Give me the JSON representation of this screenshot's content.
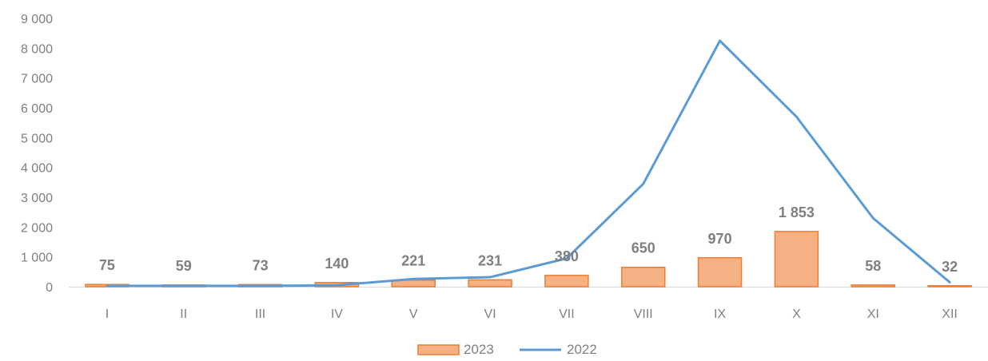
{
  "chart_data": {
    "type": "bar",
    "categories": [
      "I",
      "II",
      "III",
      "IV",
      "V",
      "VI",
      "VII",
      "VIII",
      "IX",
      "X",
      "XI",
      "XII"
    ],
    "series": [
      {
        "name": "2023",
        "kind": "bar",
        "color": "#f4b183",
        "edge_color": "#ed7d31",
        "values": [
          75,
          59,
          73,
          140,
          221,
          231,
          380,
          650,
          970,
          1853,
          58,
          32
        ],
        "data_labels": [
          "75",
          "59",
          "73",
          "140",
          "221",
          "231",
          "380",
          "650",
          "970",
          "1 853",
          "58",
          "32"
        ]
      },
      {
        "name": "2022",
        "kind": "line",
        "color": "#5b9bd5",
        "values": [
          30,
          30,
          30,
          50,
          260,
          320,
          950,
          3450,
          8250,
          5700,
          2300,
          150
        ]
      }
    ],
    "ylim": [
      0,
      9000
    ],
    "yticks": [
      0,
      1000,
      2000,
      3000,
      4000,
      5000,
      6000,
      7000,
      8000,
      9000
    ],
    "ytick_labels": [
      "0",
      "1 000",
      "2 000",
      "3 000",
      "4 000",
      "5 000",
      "6 000",
      "7 000",
      "8 000",
      "9 000"
    ],
    "grid": false,
    "legend_position": "bottom",
    "title": "",
    "xlabel": "",
    "ylabel": ""
  }
}
